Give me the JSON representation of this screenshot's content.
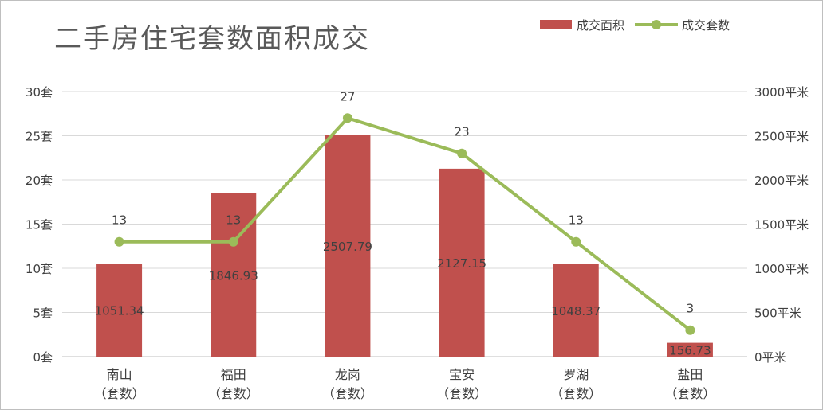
{
  "chart_data": {
    "type": "bar+line",
    "title": "二手房住宅套数面积成交",
    "categories": [
      [
        "南山",
        "（套数）"
      ],
      [
        "福田",
        "（套数）"
      ],
      [
        "龙岗",
        "（套数）"
      ],
      [
        "宝安",
        "（套数）"
      ],
      [
        "罗湖",
        "（套数）"
      ],
      [
        "盐田",
        "（套数）"
      ]
    ],
    "series": [
      {
        "name": "成交面积",
        "type": "bar",
        "axis": "right",
        "color": "#c0504d",
        "values": [
          1051.34,
          1846.93,
          2507.79,
          2127.15,
          1048.37,
          156.73
        ],
        "labels": [
          "1051.34",
          "1846.93",
          "2507.79",
          "2127.15",
          "1048.37",
          "156.73"
        ]
      },
      {
        "name": "成交套数",
        "type": "line",
        "axis": "left",
        "color": "#9bbb59",
        "values": [
          13,
          13,
          27,
          23,
          13,
          3
        ],
        "labels": [
          "13",
          "13",
          "27",
          "23",
          "13",
          "3"
        ]
      }
    ],
    "y_left": {
      "min": 0,
      "max": 30,
      "step": 5,
      "tick_labels": [
        "0套",
        "5套",
        "10套",
        "15套",
        "20套",
        "25套",
        "30套"
      ]
    },
    "y_right": {
      "min": 0,
      "max": 3000,
      "step": 500,
      "tick_labels": [
        "0平米",
        "500平米",
        "1000平米",
        "1500平米",
        "2000平米",
        "2500平米",
        "3000平米"
      ]
    },
    "legend_position": "top-right",
    "grid": true
  }
}
